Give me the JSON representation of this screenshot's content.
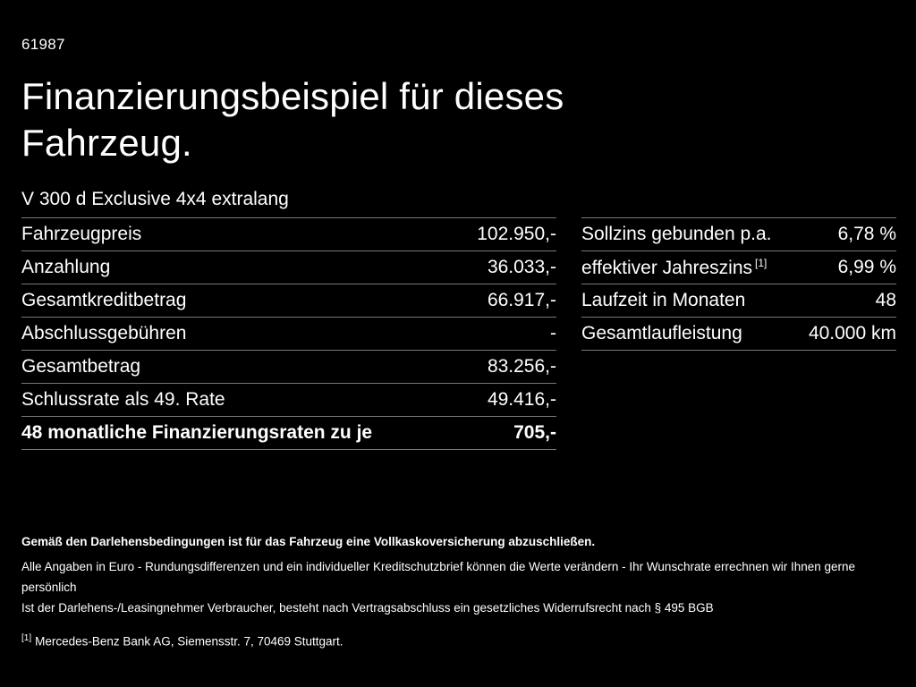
{
  "meta": {
    "doc_id": "61987"
  },
  "header": {
    "title_line1": "Finanzierungsbeispiel für dieses",
    "title_line2": "Fahrzeug.",
    "vehicle": "V 300 d Exclusive 4x4 extralang"
  },
  "financing_table": {
    "rows": [
      {
        "label": "Fahrzeugpreis",
        "value": "102.950,-"
      },
      {
        "label": "Anzahlung",
        "value": "36.033,-"
      },
      {
        "label": "Gesamtkreditbetrag",
        "value": "66.917,-"
      },
      {
        "label": "Abschlussgebühren",
        "value": "-"
      },
      {
        "label": "Gesamtbetrag",
        "value": "83.256,-"
      },
      {
        "label": "Schlussrate als 49. Rate",
        "value": "49.416,-"
      },
      {
        "label": "48 monatliche Finanzierungsraten zu je",
        "value": "705,-"
      }
    ]
  },
  "conditions_table": {
    "rows": [
      {
        "label": "Sollzins gebunden p.a.",
        "sup": "",
        "value": "6,78 %"
      },
      {
        "label": "effektiver Jahreszins",
        "sup": "[1]",
        "value": "6,99 %"
      },
      {
        "label": "Laufzeit in Monaten",
        "sup": "",
        "value": "48"
      },
      {
        "label": "Gesamtlaufleistung",
        "sup": "",
        "value": "40.000 km"
      }
    ]
  },
  "footer": {
    "insurance_note": "Gemäß den Darlehensbedingungen ist für das Fahrzeug eine Vollkaskoversicherung abzuschließen.",
    "disclaimer_line1": "Alle Angaben in Euro - Rundungsdifferenzen und ein individueller Kreditschutzbrief können die Werte verändern - Ihr Wunschrate errechnen wir Ihnen gerne persönlich",
    "disclaimer_line2": "Ist der Darlehens-/Leasingnehmer Verbraucher, besteht nach Vertragsabschluss ein gesetzliches Widerrufsrecht nach § 495 BGB",
    "footnote_marker": "[1]",
    "footnote_text": "Mercedes-Benz Bank AG, Siemensstr. 7, 70469 Stuttgart."
  },
  "colors": {
    "background": "#000000",
    "text": "#ffffff",
    "divider": "#787878"
  }
}
